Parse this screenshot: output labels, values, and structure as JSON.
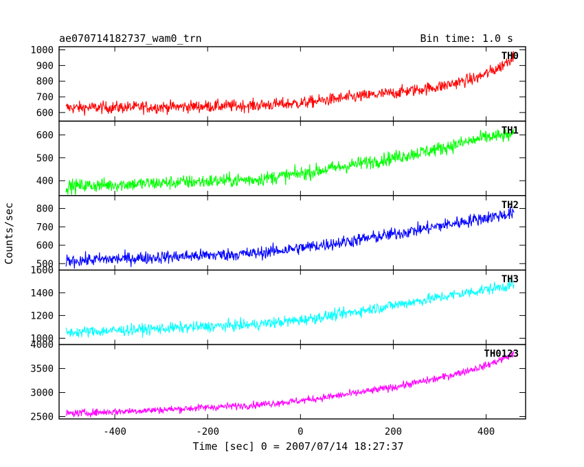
{
  "header": {
    "title": "ae070714182737_wam0_trn",
    "bin_time": "Bin time: 1.0 s"
  },
  "chart_data": {
    "type": "line",
    "title": "ae070714182737_wam0_trn",
    "xlabel": "Time [sec] 0 = 2007/07/14 18:27:37",
    "ylabel": "Counts/sec",
    "xlim": [
      -520,
      485
    ],
    "x_range": [
      -505,
      460
    ],
    "x_ticks": [
      -400,
      -200,
      0,
      200,
      400
    ],
    "grid": false,
    "panels": [
      {
        "name": "TH0",
        "color": "#ff0000",
        "ylim": [
          545,
          1020
        ],
        "y_ticks": [
          600,
          700,
          800,
          900,
          1000
        ],
        "trend_x": [
          -505,
          -300,
          -100,
          0,
          100,
          200,
          300,
          380,
          430,
          460
        ],
        "trend_y": [
          630,
          635,
          645,
          660,
          695,
          725,
          765,
          820,
          890,
          960
        ],
        "noise": 28
      },
      {
        "name": "TH1",
        "color": "#00ff00",
        "ylim": [
          335,
          660
        ],
        "y_ticks": [
          400,
          500,
          600
        ],
        "trend_x": [
          -505,
          -300,
          -100,
          0,
          100,
          200,
          300,
          400,
          460
        ],
        "trend_y": [
          375,
          390,
          405,
          430,
          465,
          500,
          540,
          590,
          600
        ],
        "noise": 22
      },
      {
        "name": "TH2",
        "color": "#0000ff",
        "ylim": [
          465,
          870
        ],
        "y_ticks": [
          500,
          600,
          700,
          800
        ],
        "trend_x": [
          -505,
          -300,
          -100,
          0,
          100,
          200,
          300,
          400,
          460
        ],
        "trend_y": [
          515,
          535,
          555,
          585,
          620,
          660,
          705,
          750,
          775
        ],
        "noise": 25
      },
      {
        "name": "TH3",
        "color": "#00ffff",
        "ylim": [
          945,
          1600
        ],
        "y_ticks": [
          1000,
          1200,
          1400,
          1600
        ],
        "trend_x": [
          -505,
          -300,
          -100,
          0,
          100,
          200,
          300,
          400,
          460
        ],
        "trend_y": [
          1050,
          1085,
          1120,
          1160,
          1220,
          1290,
          1360,
          1430,
          1470
        ],
        "noise": 35
      },
      {
        "name": "TH0123",
        "color": "#ff00ff",
        "ylim": [
          2450,
          4000
        ],
        "y_ticks": [
          2500,
          3000,
          3500,
          4000
        ],
        "trend_x": [
          -505,
          -300,
          -100,
          0,
          100,
          200,
          300,
          400,
          460
        ],
        "trend_y": [
          2560,
          2640,
          2740,
          2830,
          2960,
          3110,
          3300,
          3560,
          3800
        ],
        "noise": 55
      }
    ]
  }
}
